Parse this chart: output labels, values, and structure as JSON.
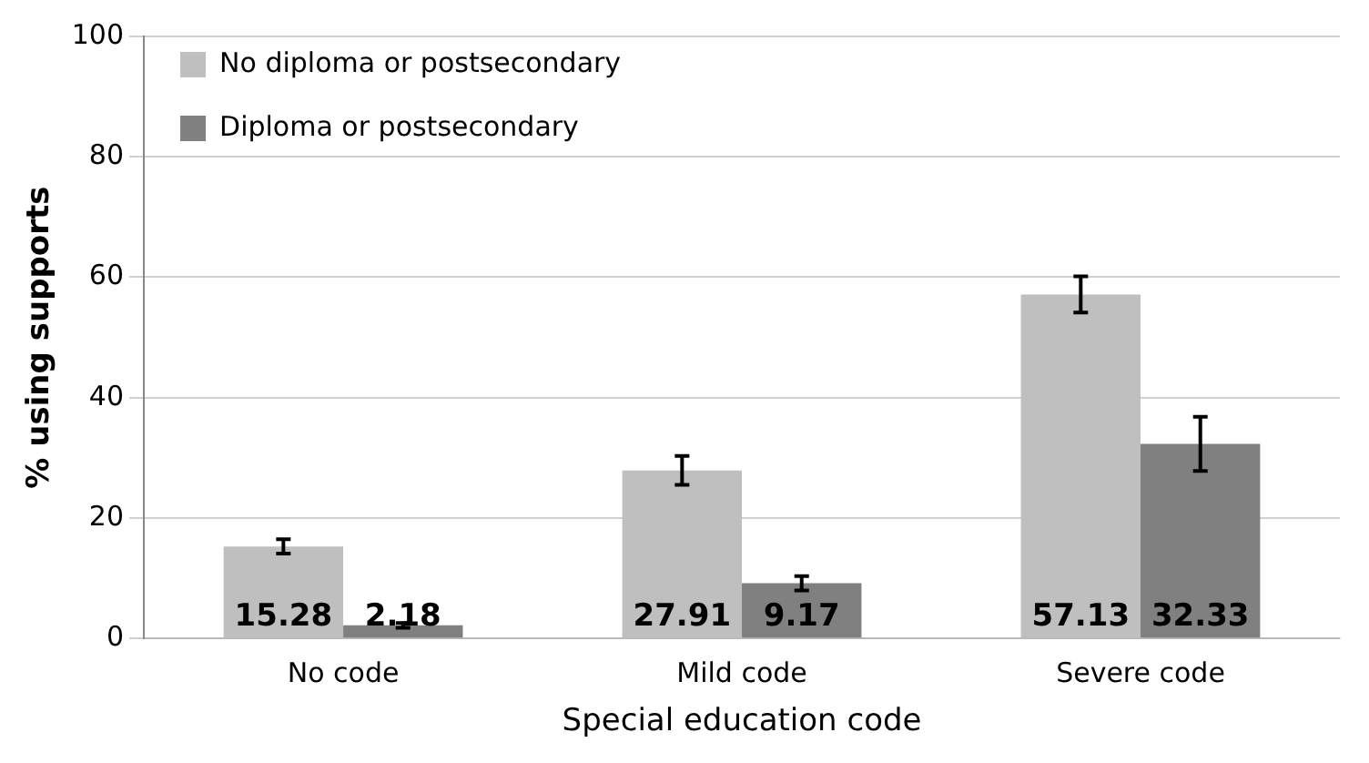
{
  "chart_data": {
    "type": "bar",
    "xlabel": "Special education code",
    "ylabel": "% using supports",
    "categories": [
      "No code",
      "Mild code",
      "Severe code"
    ],
    "series": [
      {
        "name": "No diploma or postsecondary",
        "color": "#bfbfbf",
        "values": [
          15.28,
          27.91,
          57.13
        ],
        "errors": [
          1.2,
          2.4,
          3
        ]
      },
      {
        "name": "Diploma or postsecondary",
        "color": "#808080",
        "values": [
          2.18,
          9.17,
          32.33
        ],
        "errors": [
          0.4,
          1.2,
          4.5
        ]
      }
    ],
    "ylim": [
      0,
      100
    ],
    "yticks": [
      0,
      20,
      40,
      60,
      80,
      100
    ],
    "grid": "y",
    "legend": "top left",
    "data_labels": true
  }
}
